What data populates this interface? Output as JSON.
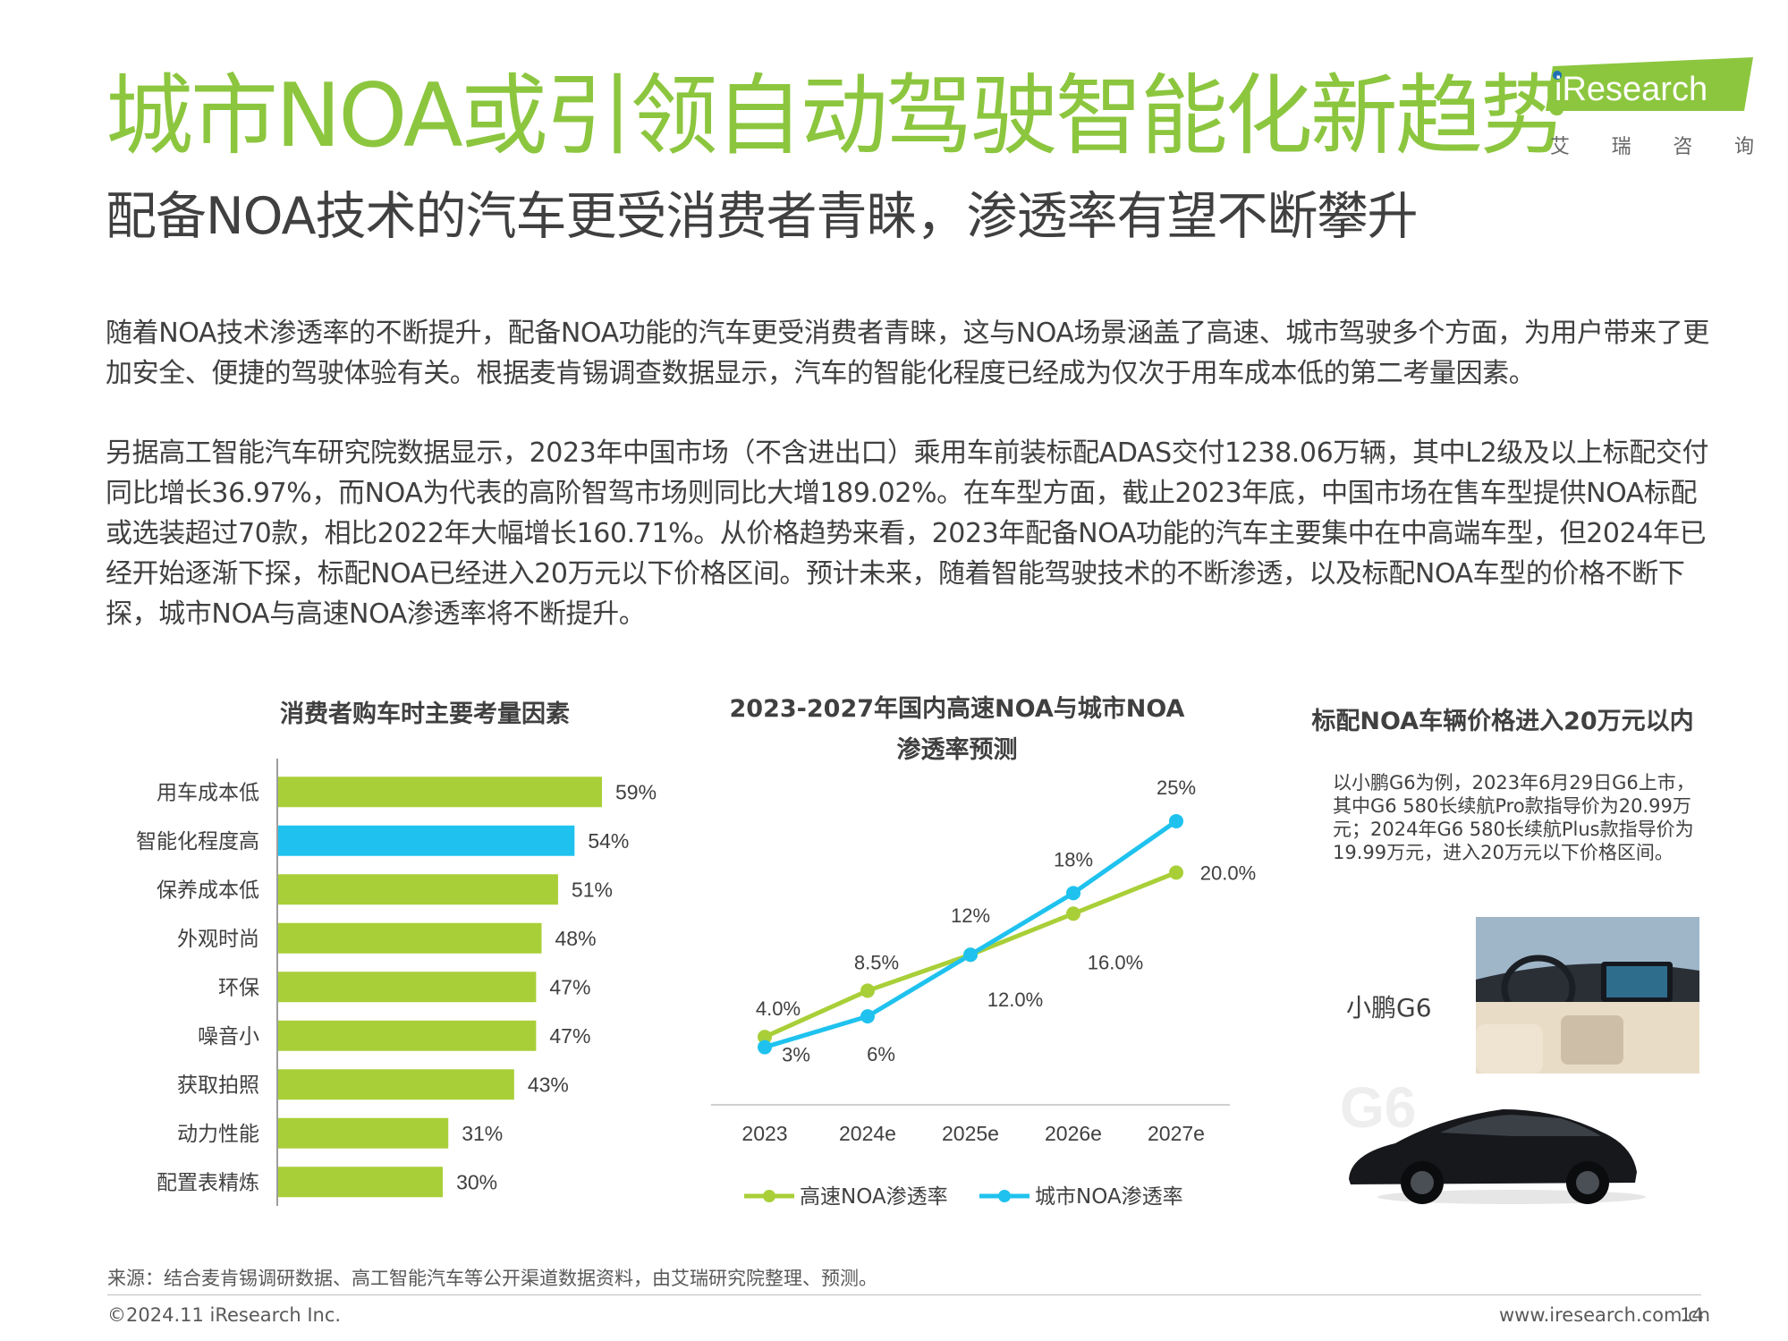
{
  "header": {
    "title": "城市NOA或引领自动驾驶智能化新趋势",
    "subtitle": "配备NOA技术的汽车更受消费者青睐，渗透率有望不断攀升",
    "logo_text": "iResearch",
    "logo_cn": [
      "艾",
      "瑞",
      "咨",
      "询"
    ]
  },
  "body": {
    "paragraph1": "随着NOA技术渗透率的不断提升，配备NOA功能的汽车更受消费者青睐，这与NOA场景涵盖了高速、城市驾驶多个方面，为用户带来了更加安全、便捷的驾驶体验有关。根据麦肯锡调查数据显示，汽车的智能化程度已经成为仅次于用车成本低的第二考量因素。",
    "paragraph2": "另据高工智能汽车研究院数据显示，2023年中国市场（不含进出口）乘用车前装标配ADAS交付1238.06万辆，其中L2级及以上标配交付同比增长36.97%，而NOA为代表的高阶智驾市场则同比大增189.02%。在车型方面，截止2023年底，中国市场在售车型提供NOA标配或选装超过70款，相比2022年大幅增长160.71%。从价格趋势来看，2023年配备NOA功能的汽车主要集中在中高端车型，但2024年已经开始逐渐下探，标配NOA已经进入20万元以下价格区间。预计未来，随着智能驾驶技术的不断渗透，以及标配NOA车型的价格不断下探，城市NOA与高速NOA渗透率将不断提升。"
  },
  "car_panel": {
    "title": "标配NOA车辆价格进入20万元以内",
    "description": "以小鹏G6为例，2023年6月29日G6上市，其中G6  580长续航Pro款指导价为20.99万元；2024年G6  580长续航Plus款指导价为19.99万元，进入20万元以下价格区间。",
    "car_label": "小鹏G6"
  },
  "chart_data": [
    {
      "type": "bar",
      "orientation": "horizontal",
      "title": "消费者购车时主要考量因素",
      "categories": [
        "用车成本低",
        "智能化程度高",
        "保养成本低",
        "外观时尚",
        "环保",
        "噪音小",
        "获取拍照",
        "动力性能",
        "配置表精炼"
      ],
      "values": [
        59,
        54,
        51,
        48,
        47,
        47,
        43,
        31,
        30
      ],
      "value_labels": [
        "59%",
        "54%",
        "51%",
        "48%",
        "47%",
        "47%",
        "43%",
        "31%",
        "30%"
      ],
      "highlight_index": 1,
      "colors": {
        "default": "#a9cf38",
        "highlight": "#1fc2ee"
      },
      "xlim": [
        0,
        65
      ]
    },
    {
      "type": "line",
      "title": "2023-2027年国内高速NOA与城市NOA渗透率预测",
      "title_lines": [
        "2023-2027年国内高速NOA与城市NOA",
        "渗透率预测"
      ],
      "categories": [
        "2023",
        "2024e",
        "2025e",
        "2026e",
        "2027e"
      ],
      "series": [
        {
          "name": "高速NOA渗透率",
          "color": "#a9cf38",
          "values": [
            4.0,
            8.5,
            12.0,
            16.0,
            20.0
          ],
          "labels": [
            "4.0%",
            "8.5%",
            "12.0%",
            "16.0%",
            "20.0%"
          ]
        },
        {
          "name": "城市NOA渗透率",
          "color": "#1fc2ee",
          "values": [
            3,
            6,
            12,
            18,
            25
          ],
          "labels": [
            "3%",
            "6%",
            "12%",
            "18%",
            "25%"
          ]
        }
      ],
      "ylim": [
        0,
        27
      ],
      "legend": "bottom"
    }
  ],
  "footer": {
    "source": "来源：结合麦肯锡调研数据、高工智能汽车等公开渠道数据资料，由艾瑞研究院整理、预测。",
    "copyright": "©2024.11 iResearch Inc.",
    "website": "www.iresearch.com.cn",
    "page_number": "14"
  }
}
